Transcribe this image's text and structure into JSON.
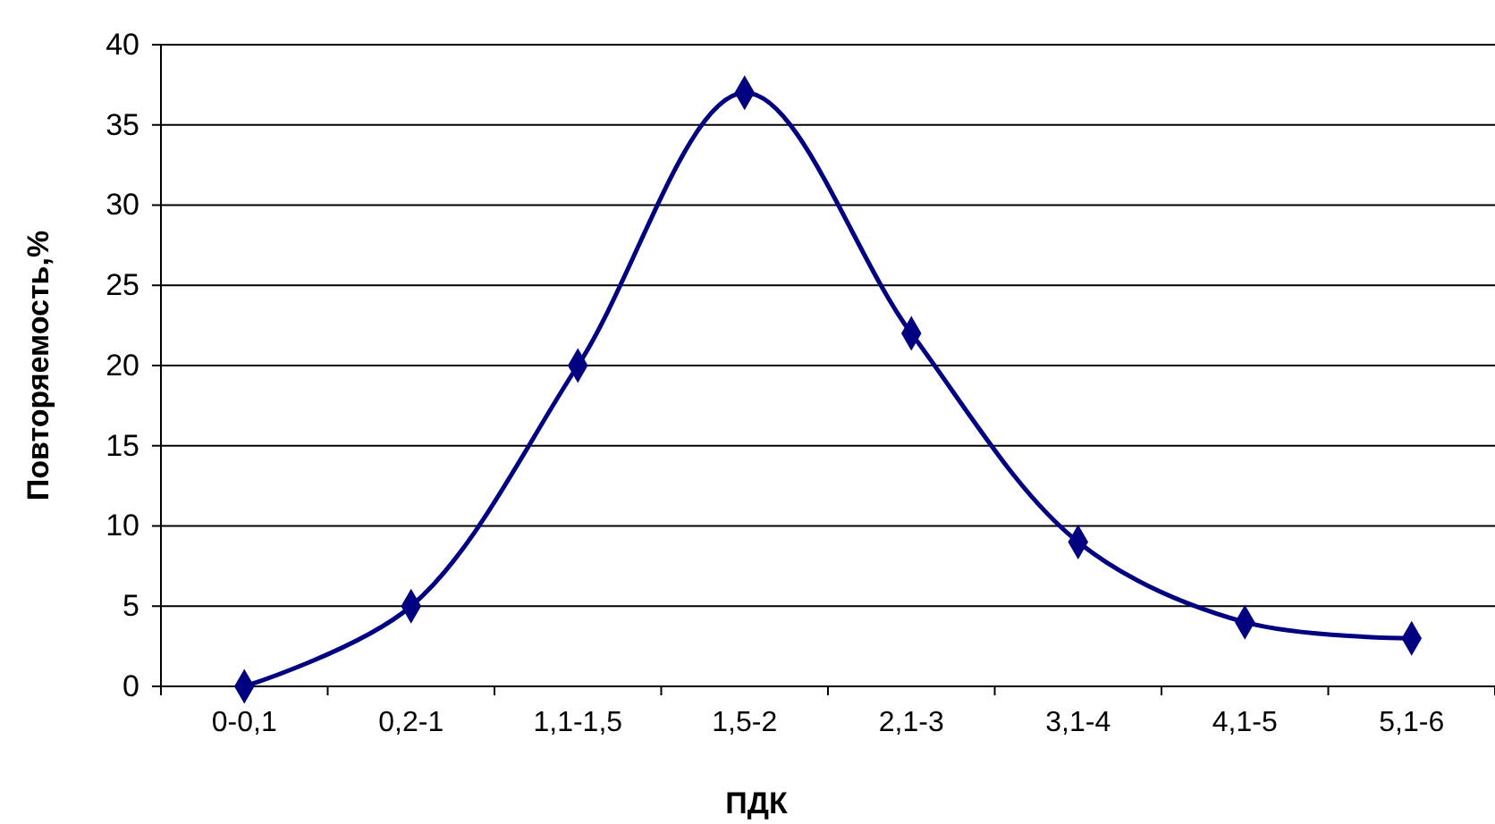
{
  "chart_data": {
    "type": "line",
    "xlabel": "ПДК",
    "ylabel": "Повторяемость,%",
    "categories": [
      "0-0,1",
      "0,2-1",
      "1,1-1,5",
      "1,5-2",
      "2,1-3",
      "3,1-4",
      "4,1-5",
      "5,1-6"
    ],
    "series": [
      {
        "color": "#000080",
        "values": [
          0,
          5,
          20,
          37,
          22,
          9,
          4,
          3
        ]
      }
    ],
    "ylim": [
      0,
      40
    ],
    "yticks": [
      0,
      5,
      10,
      15,
      20,
      25,
      30,
      35,
      40
    ],
    "grid": "y",
    "marker": "diamond",
    "line_style": "solid"
  }
}
